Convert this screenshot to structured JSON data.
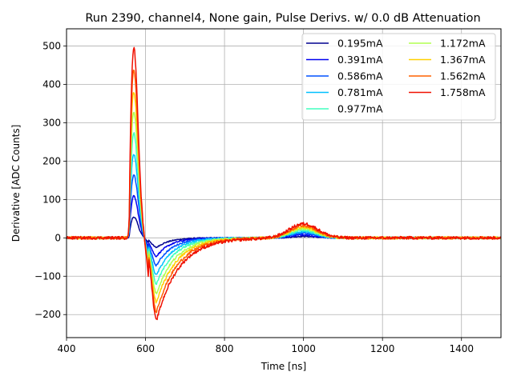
{
  "chart_data": {
    "type": "line",
    "title": "Run 2390, channel4, None gain, Pulse Derivs. w/ 0.0 dB Attenuation",
    "xlabel": "Time [ns]",
    "ylabel": "Derivative [ADC Counts]",
    "xlim": [
      400,
      1500
    ],
    "ylim": [
      -260,
      545
    ],
    "xticks": [
      400,
      600,
      800,
      1000,
      1200,
      1400
    ],
    "yticks": [
      -200,
      -100,
      0,
      100,
      200,
      300,
      400,
      500
    ],
    "grid": true,
    "legend": {
      "placement": "top-right",
      "columns": 2
    },
    "series": [
      {
        "name": "0.195mA",
        "color": "#00008f",
        "peak": 55,
        "trough": -25,
        "bump": 4
      },
      {
        "name": "0.391mA",
        "color": "#0000f0",
        "peak": 110,
        "trough": -48,
        "bump": 8
      },
      {
        "name": "0.586mA",
        "color": "#0050ff",
        "peak": 165,
        "trough": -72,
        "bump": 12
      },
      {
        "name": "0.781mA",
        "color": "#00c0ff",
        "peak": 220,
        "trough": -97,
        "bump": 16
      },
      {
        "name": "0.977mA",
        "color": "#40ffbf",
        "peak": 275,
        "trough": -120,
        "bump": 20
      },
      {
        "name": "1.172mA",
        "color": "#b0ff50",
        "peak": 330,
        "trough": -145,
        "bump": 24
      },
      {
        "name": "1.367mA",
        "color": "#ffd000",
        "peak": 385,
        "trough": -168,
        "bump": 28
      },
      {
        "name": "1.562mA",
        "color": "#ff6000",
        "peak": 440,
        "trough": -192,
        "bump": 32
      },
      {
        "name": "1.758mA",
        "color": "#f01000",
        "peak": 500,
        "trough": -215,
        "bump": 37
      }
    ]
  }
}
